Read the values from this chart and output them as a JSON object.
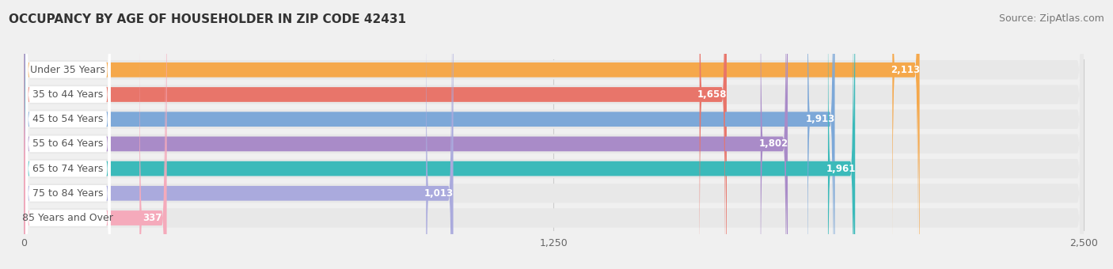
{
  "title": "OCCUPANCY BY AGE OF HOUSEHOLDER IN ZIP CODE 42431",
  "source": "Source: ZipAtlas.com",
  "categories": [
    "Under 35 Years",
    "35 to 44 Years",
    "45 to 54 Years",
    "55 to 64 Years",
    "65 to 74 Years",
    "75 to 84 Years",
    "85 Years and Over"
  ],
  "values": [
    2113,
    1658,
    1913,
    1802,
    1961,
    1013,
    337
  ],
  "bar_colors": [
    "#F5A84B",
    "#E8756A",
    "#7DA8D8",
    "#A98BC8",
    "#3BBABA",
    "#AAAADD",
    "#F5AABB"
  ],
  "xlim_max": 2500,
  "xticks": [
    0,
    1250,
    2500
  ],
  "xticklabels": [
    "0",
    "1,250",
    "2,500"
  ],
  "title_fontsize": 11,
  "source_fontsize": 9,
  "label_fontsize": 9,
  "value_fontsize": 8.5,
  "background_color": "#f0f0f0",
  "bar_bg_color": "#e8e8e8",
  "white_pill_color": "#ffffff"
}
